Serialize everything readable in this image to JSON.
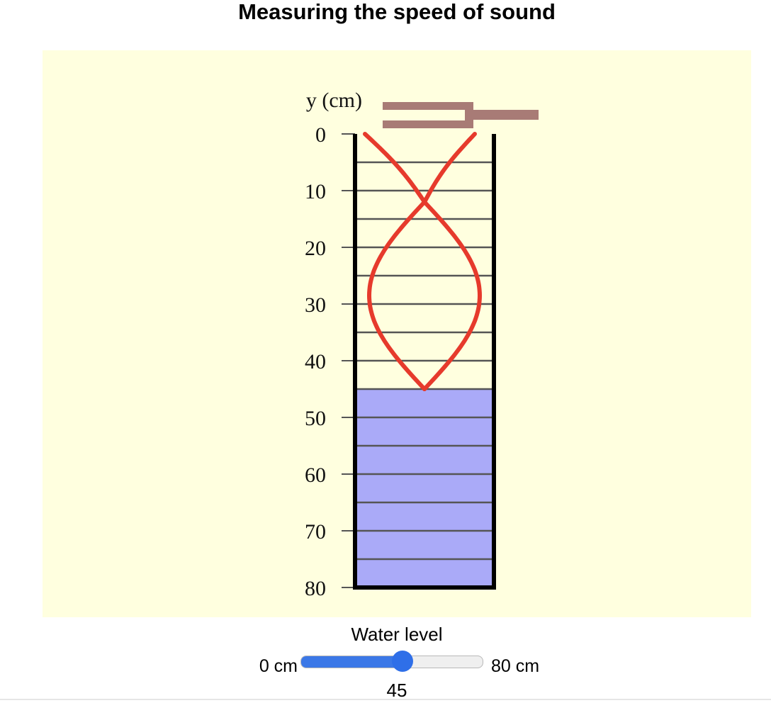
{
  "title": "Measuring the speed of sound",
  "colors": {
    "panel_background": "#ffffdf",
    "water": "#aaaaf8",
    "wave": "#e63a2c",
    "tuning_fork": "#a87b76",
    "tube_wall": "#000000",
    "gridline": "#555555",
    "slider_accent": "#3b78e7"
  },
  "diagram": {
    "axis_title": "y (cm)",
    "axis_range_cm": [
      0,
      80
    ],
    "tick_values": [
      0,
      10,
      20,
      30,
      40,
      50,
      60,
      70,
      80
    ],
    "tick_labels": [
      "0",
      "10",
      "20",
      "30",
      "40",
      "50",
      "60",
      "70",
      "80"
    ],
    "gridline_spacing_cm": 5,
    "y_axis_direction": "downward",
    "water_level_cm": 45,
    "wave": {
      "node_depth_cm": 12,
      "antinode_depth_cm": 29,
      "bottom_node_cm": 45
    },
    "tuning_fork": "tuning-fork-icon"
  },
  "slider": {
    "label": "Water level",
    "min_label": "0 cm",
    "max_label": "80 cm",
    "min": 0,
    "max": 80,
    "value": 45,
    "value_label": "45"
  }
}
